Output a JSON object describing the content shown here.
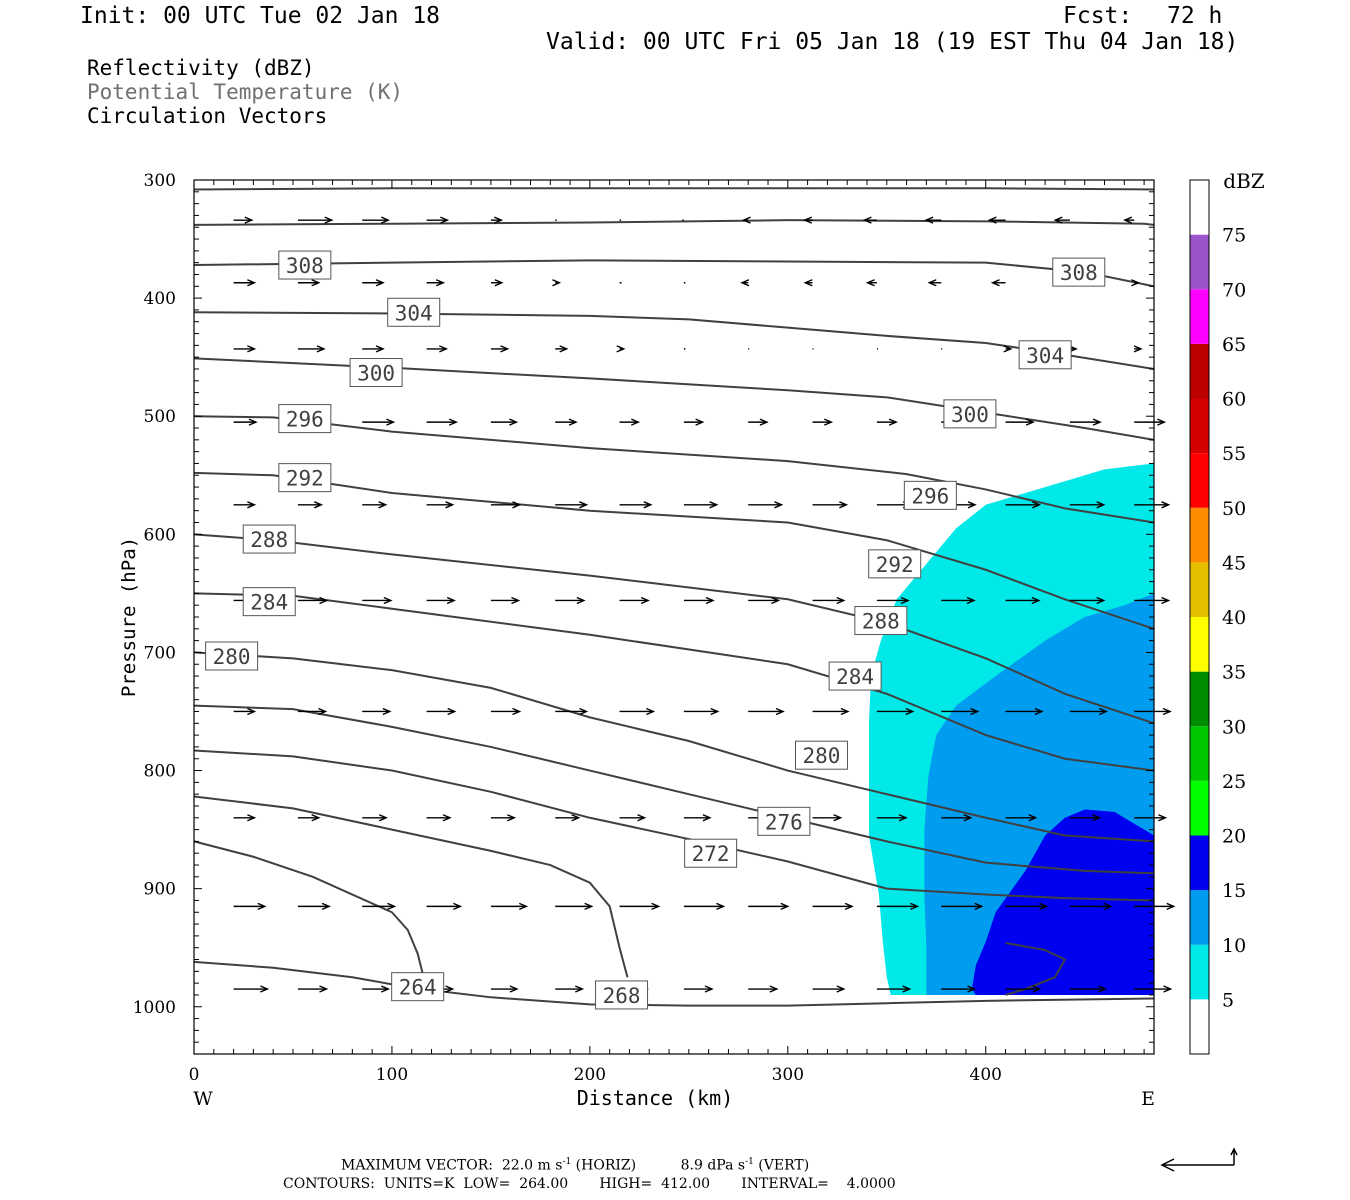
{
  "header": {
    "init": "Init: 00 UTC Tue 02 Jan 18",
    "fcst_label": "Fcst:",
    "fcst_value": "72 h",
    "valid": "Valid: 00 UTC Fri 05 Jan 18 (19 EST Thu 04 Jan 18)"
  },
  "fields": {
    "reflectivity": "Reflectivity (dBZ)",
    "theta": "Potential Temperature (K)",
    "vectors": "Circulation Vectors"
  },
  "footer": {
    "max_vector_label": "MAXIMUM VECTOR:",
    "horiz_value": "22.0 m s",
    "horiz_tag": "(HORIZ)",
    "vert_value": "8.9 dPa s",
    "vert_tag": "(VERT)",
    "exponent": "-1",
    "contours_line": "CONTOURS:  UNITS=K  LOW=  264.00       HIGH=  412.00       INTERVAL=    4.0000"
  },
  "colors": {
    "contour": "#404040",
    "vector": "#000000"
  },
  "chart_data": {
    "type": "cross-section",
    "xlabel": "Distance (km)",
    "ylabel": "Pressure (hPa)",
    "x_range": [
      0,
      485
    ],
    "y_range": [
      300,
      1040
    ],
    "y_axis_inverted": true,
    "x_ticks": [
      0,
      100,
      200,
      300,
      400
    ],
    "y_ticks": [
      300,
      400,
      500,
      600,
      700,
      800,
      900,
      1000
    ],
    "x_end_labels": {
      "left": "W",
      "right": "E"
    },
    "colorbar": {
      "title": "dBZ",
      "levels": [
        5,
        10,
        15,
        20,
        25,
        30,
        35,
        40,
        45,
        50,
        55,
        60,
        65,
        70,
        75
      ],
      "colors": [
        "#00e8e8",
        "#009cf0",
        "#0000f0",
        "#00ff00",
        "#00c800",
        "#008c00",
        "#ffff00",
        "#e6be00",
        "#ff8c00",
        "#ff0000",
        "#d40000",
        "#bc0000",
        "#ff00ff",
        "#9955c9",
        "#ffffff"
      ]
    },
    "reflectivity_regions": [
      {
        "dbz": 5,
        "polygon": [
          [
            485,
            540
          ],
          [
            460,
            545
          ],
          [
            430,
            560
          ],
          [
            400,
            575
          ],
          [
            385,
            595
          ],
          [
            370,
            625
          ],
          [
            355,
            655
          ],
          [
            347,
            690
          ],
          [
            342,
            720
          ],
          [
            341,
            760
          ],
          [
            341,
            805
          ],
          [
            341,
            855
          ],
          [
            346,
            905
          ],
          [
            348,
            945
          ],
          [
            350,
            975
          ],
          [
            352,
            990
          ],
          [
            485,
            990
          ]
        ]
      },
      {
        "dbz": 10,
        "polygon": [
          [
            485,
            650
          ],
          [
            470,
            660
          ],
          [
            450,
            670
          ],
          [
            430,
            690
          ],
          [
            405,
            720
          ],
          [
            385,
            745
          ],
          [
            375,
            770
          ],
          [
            371,
            805
          ],
          [
            369,
            850
          ],
          [
            369,
            905
          ],
          [
            370,
            950
          ],
          [
            370,
            990
          ],
          [
            485,
            990
          ]
        ]
      },
      {
        "dbz": 15,
        "polygon": [
          [
            485,
            855
          ],
          [
            475,
            845
          ],
          [
            465,
            835
          ],
          [
            450,
            833
          ],
          [
            440,
            840
          ],
          [
            430,
            855
          ],
          [
            420,
            885
          ],
          [
            405,
            920
          ],
          [
            400,
            945
          ],
          [
            395,
            965
          ],
          [
            393,
            985
          ],
          [
            395,
            990
          ],
          [
            485,
            990
          ]
        ]
      }
    ],
    "theta_contours": [
      {
        "value": 312,
        "points": [
          [
            0,
            308
          ],
          [
            100,
            307
          ],
          [
            200,
            307
          ],
          [
            300,
            307
          ],
          [
            400,
            307
          ],
          [
            485,
            308
          ]
        ]
      },
      {
        "value": 312,
        "points": [
          [
            0,
            338
          ],
          [
            100,
            337
          ],
          [
            200,
            336
          ],
          [
            300,
            334
          ],
          [
            400,
            335
          ],
          [
            480,
            337
          ],
          [
            485,
            338
          ]
        ]
      },
      {
        "value": 308,
        "points": [
          [
            0,
            372
          ],
          [
            100,
            370
          ],
          [
            200,
            368
          ],
          [
            300,
            369
          ],
          [
            400,
            370
          ],
          [
            450,
            378
          ],
          [
            485,
            390
          ]
        ]
      },
      {
        "value": 304,
        "points": [
          [
            0,
            412
          ],
          [
            100,
            413
          ],
          [
            200,
            415
          ],
          [
            250,
            418
          ],
          [
            300,
            425
          ],
          [
            350,
            432
          ],
          [
            400,
            438
          ],
          [
            440,
            448
          ],
          [
            485,
            460
          ]
        ]
      },
      {
        "value": 300,
        "points": [
          [
            0,
            451
          ],
          [
            100,
            459
          ],
          [
            200,
            468
          ],
          [
            300,
            478
          ],
          [
            350,
            484
          ],
          [
            400,
            497
          ],
          [
            450,
            510
          ],
          [
            485,
            520
          ]
        ]
      },
      {
        "value": 296,
        "points": [
          [
            0,
            500
          ],
          [
            40,
            501
          ],
          [
            100,
            513
          ],
          [
            200,
            527
          ],
          [
            300,
            538
          ],
          [
            360,
            549
          ],
          [
            400,
            562
          ],
          [
            440,
            578
          ],
          [
            485,
            590
          ]
        ]
      },
      {
        "value": 292,
        "points": [
          [
            0,
            548
          ],
          [
            40,
            550
          ],
          [
            100,
            565
          ],
          [
            200,
            580
          ],
          [
            300,
            590
          ],
          [
            350,
            605
          ],
          [
            400,
            630
          ],
          [
            440,
            655
          ],
          [
            485,
            680
          ]
        ]
      },
      {
        "value": 288,
        "points": [
          [
            0,
            600
          ],
          [
            40,
            605
          ],
          [
            100,
            617
          ],
          [
            200,
            635
          ],
          [
            300,
            655
          ],
          [
            350,
            675
          ],
          [
            400,
            705
          ],
          [
            440,
            735
          ],
          [
            485,
            760
          ]
        ]
      },
      {
        "value": 284,
        "points": [
          [
            0,
            650
          ],
          [
            50,
            652
          ],
          [
            100,
            663
          ],
          [
            200,
            685
          ],
          [
            300,
            710
          ],
          [
            350,
            735
          ],
          [
            400,
            770
          ],
          [
            440,
            790
          ],
          [
            485,
            800
          ]
        ]
      },
      {
        "value": 280,
        "points": [
          [
            0,
            700
          ],
          [
            50,
            705
          ],
          [
            100,
            715
          ],
          [
            150,
            730
          ],
          [
            200,
            755
          ],
          [
            250,
            775
          ],
          [
            300,
            800
          ],
          [
            350,
            820
          ],
          [
            400,
            840
          ],
          [
            440,
            855
          ],
          [
            485,
            860
          ]
        ]
      },
      {
        "value": 276,
        "points": [
          [
            0,
            745
          ],
          [
            50,
            748
          ],
          [
            100,
            763
          ],
          [
            150,
            780
          ],
          [
            200,
            800
          ],
          [
            250,
            820
          ],
          [
            300,
            840
          ],
          [
            350,
            860
          ],
          [
            400,
            878
          ],
          [
            450,
            885
          ],
          [
            485,
            887
          ]
        ]
      },
      {
        "value": 272,
        "points": [
          [
            0,
            783
          ],
          [
            50,
            788
          ],
          [
            100,
            800
          ],
          [
            150,
            818
          ],
          [
            200,
            840
          ],
          [
            250,
            858
          ],
          [
            300,
            877
          ],
          [
            350,
            900
          ],
          [
            400,
            905
          ],
          [
            440,
            908
          ],
          [
            485,
            910
          ]
        ]
      },
      {
        "value": 268,
        "points": [
          [
            0,
            822
          ],
          [
            50,
            832
          ],
          [
            100,
            850
          ],
          [
            150,
            868
          ],
          [
            180,
            880
          ],
          [
            200,
            895
          ],
          [
            210,
            915
          ],
          [
            215,
            950
          ],
          [
            219,
            975
          ]
        ]
      },
      {
        "value": 264,
        "points": [
          [
            0,
            860
          ],
          [
            30,
            873
          ],
          [
            60,
            890
          ],
          [
            80,
            905
          ],
          [
            100,
            920
          ],
          [
            108,
            935
          ],
          [
            113,
            955
          ],
          [
            116,
            975
          ]
        ]
      },
      {
        "value": 264,
        "points": [
          [
            0,
            962
          ],
          [
            40,
            967
          ],
          [
            80,
            975
          ],
          [
            110,
            984
          ],
          [
            150,
            992
          ],
          [
            200,
            998
          ],
          [
            250,
            999
          ],
          [
            300,
            999
          ],
          [
            350,
            997
          ],
          [
            400,
            995
          ],
          [
            485,
            993
          ]
        ]
      },
      {
        "value": 272,
        "points": [
          [
            410,
            946
          ],
          [
            430,
            952
          ],
          [
            440,
            960
          ],
          [
            435,
            975
          ],
          [
            420,
            985
          ],
          [
            410,
            990
          ]
        ]
      }
    ],
    "contour_labels": [
      {
        "text": "308",
        "x": 56,
        "p": 372
      },
      {
        "text": "308",
        "x": 447,
        "p": 378
      },
      {
        "text": "304",
        "x": 111,
        "p": 412
      },
      {
        "text": "304",
        "x": 430,
        "p": 448
      },
      {
        "text": "300",
        "x": 92,
        "p": 463
      },
      {
        "text": "300",
        "x": 392,
        "p": 498
      },
      {
        "text": "296",
        "x": 56,
        "p": 502
      },
      {
        "text": "296",
        "x": 372,
        "p": 567
      },
      {
        "text": "292",
        "x": 56,
        "p": 552
      },
      {
        "text": "292",
        "x": 354,
        "p": 625
      },
      {
        "text": "288",
        "x": 38,
        "p": 604
      },
      {
        "text": "288",
        "x": 347,
        "p": 673
      },
      {
        "text": "284",
        "x": 38,
        "p": 657
      },
      {
        "text": "284",
        "x": 334,
        "p": 720
      },
      {
        "text": "280",
        "x": 19,
        "p": 703
      },
      {
        "text": "280",
        "x": 317,
        "p": 787
      },
      {
        "text": "276",
        "x": 298,
        "p": 843
      },
      {
        "text": "272",
        "x": 261,
        "p": 870
      },
      {
        "text": "268",
        "x": 216,
        "p": 990
      },
      {
        "text": "264",
        "x": 113,
        "p": 983
      }
    ],
    "vector_rows": [
      {
        "p": 334,
        "u": [
          3.5,
          6.5,
          5,
          4,
          2,
          0.3,
          0.3,
          -0.3,
          -0.9,
          -1.5,
          -2.4,
          -2.9,
          -3.1,
          -2.8,
          -1.8
        ]
      },
      {
        "p": 387,
        "u": [
          4,
          4,
          4,
          3.2,
          2.1,
          0.8,
          0.4,
          0.3,
          -1.2,
          -1.4,
          -1.8,
          -2.3,
          -2.5,
          -1.6,
          0.8
        ]
      },
      {
        "p": 443,
        "u": [
          4,
          5,
          4,
          3.8,
          3.2,
          2.2,
          0.8,
          0.3,
          0.2,
          0.2,
          0.2,
          0.2,
          1,
          1.2,
          1.3
        ]
      },
      {
        "p": 505,
        "u": [
          4.3,
          5.1,
          6,
          5.7,
          4.9,
          4,
          3.6,
          3.6,
          3.6,
          3.6,
          3.7,
          4.7,
          5.3,
          5.8,
          5.8
        ]
      },
      {
        "p": 575,
        "u": [
          4,
          4.5,
          4.5,
          5,
          5.5,
          6,
          6,
          6.3,
          6.4,
          6.5,
          6.4,
          6.5,
          6.5,
          6.5,
          6.6
        ]
      },
      {
        "p": 656,
        "u": [
          4.5,
          5.5,
          5.5,
          5.3,
          5.3,
          5.5,
          5.5,
          5.6,
          5.8,
          6,
          6,
          6.3,
          6.4,
          6.5,
          6.6
        ]
      },
      {
        "p": 750,
        "u": [
          4,
          5.3,
          5.3,
          5.4,
          5.5,
          6,
          6.5,
          6.5,
          6.7,
          6.8,
          6.9,
          7,
          7,
          7,
          6.9
        ]
      },
      {
        "p": 840,
        "u": [
          4,
          4,
          4.6,
          4.5,
          4.5,
          4.5,
          4.8,
          5,
          5.4,
          5.4,
          5.6,
          5.7,
          5.8,
          5.7,
          6
        ]
      },
      {
        "p": 915,
        "u": [
          6,
          6,
          6.2,
          6.5,
          6.8,
          7,
          7.5,
          7.6,
          7.6,
          7.6,
          7.8,
          7.8,
          7.9,
          7.9,
          7.6
        ]
      },
      {
        "p": 985,
        "u": [
          6.5,
          5.5,
          5,
          5,
          5,
          5.2,
          5.3,
          5.4,
          5.5,
          6,
          6.3,
          6.4,
          6.6,
          6.8,
          7
        ]
      }
    ]
  }
}
